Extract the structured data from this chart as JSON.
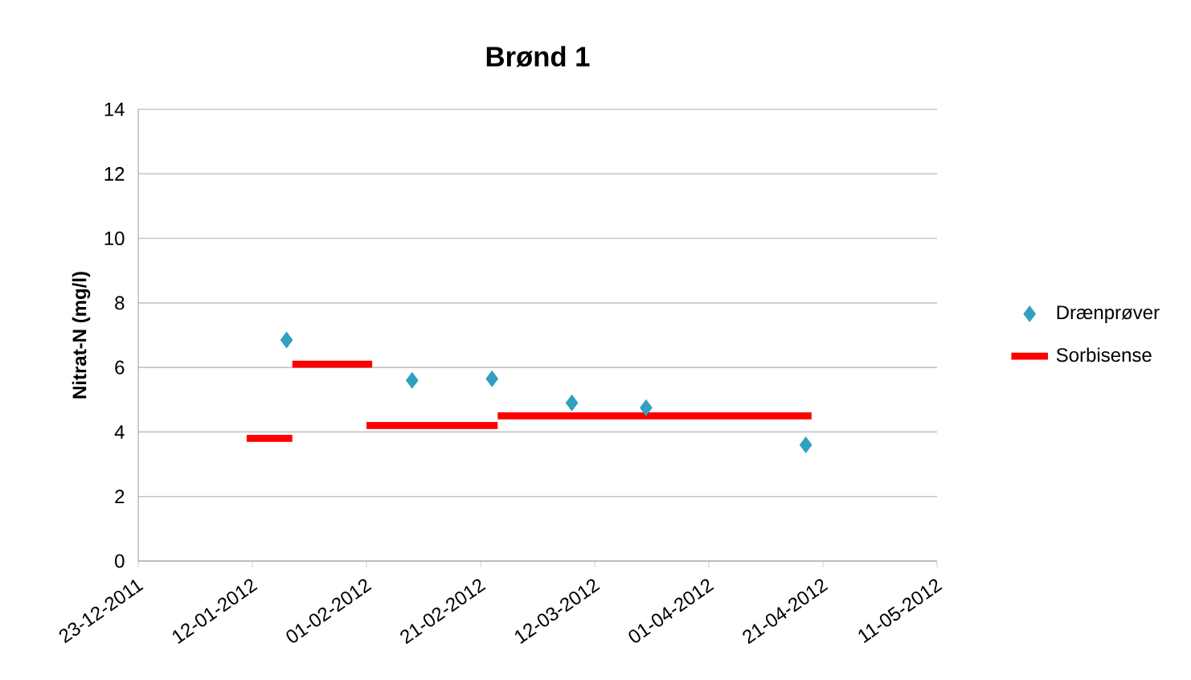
{
  "chart_data": {
    "type": "scatter",
    "title": "Brønd 1",
    "ylabel": "Nitrat-N (mg/l)",
    "xlim": [
      "2011-12-23",
      "2012-05-11"
    ],
    "xticks": [
      {
        "value": "2011-12-23",
        "label": "23-12-2011"
      },
      {
        "value": "2012-01-12",
        "label": "12-01-2012"
      },
      {
        "value": "2012-02-01",
        "label": "01-02-2012"
      },
      {
        "value": "2012-02-21",
        "label": "21-02-2012"
      },
      {
        "value": "2012-03-12",
        "label": "12-03-2012"
      },
      {
        "value": "2012-04-01",
        "label": "01-04-2012"
      },
      {
        "value": "2012-04-21",
        "label": "21-04-2012"
      },
      {
        "value": "2012-05-11",
        "label": "11-05-2012"
      }
    ],
    "ylim": [
      0,
      14
    ],
    "yticks": [
      0,
      2,
      4,
      6,
      8,
      10,
      12,
      14
    ],
    "grid": "y",
    "legend": "right",
    "series": [
      {
        "name": "Drænprøver",
        "marker": "diamond",
        "color": "#31a0c0",
        "x": [
          "2012-01-18",
          "2012-02-09",
          "2012-02-23",
          "2012-03-08",
          "2012-03-21",
          "2012-04-18"
        ],
        "values": [
          6.85,
          5.6,
          5.65,
          4.9,
          4.75,
          3.6
        ]
      },
      {
        "name": "Sorbisense",
        "type": "line",
        "marker": "none",
        "color": "#ff0000",
        "x": [
          "2012-01-11",
          "2012-01-19",
          null,
          "2012-01-19",
          "2012-02-02",
          null,
          "2012-02-01",
          "2012-02-24",
          null,
          "2012-02-24",
          "2012-04-19"
        ],
        "values": [
          3.8,
          3.8,
          null,
          6.1,
          6.1,
          null,
          4.2,
          4.2,
          null,
          4.5,
          4.5
        ]
      }
    ]
  }
}
